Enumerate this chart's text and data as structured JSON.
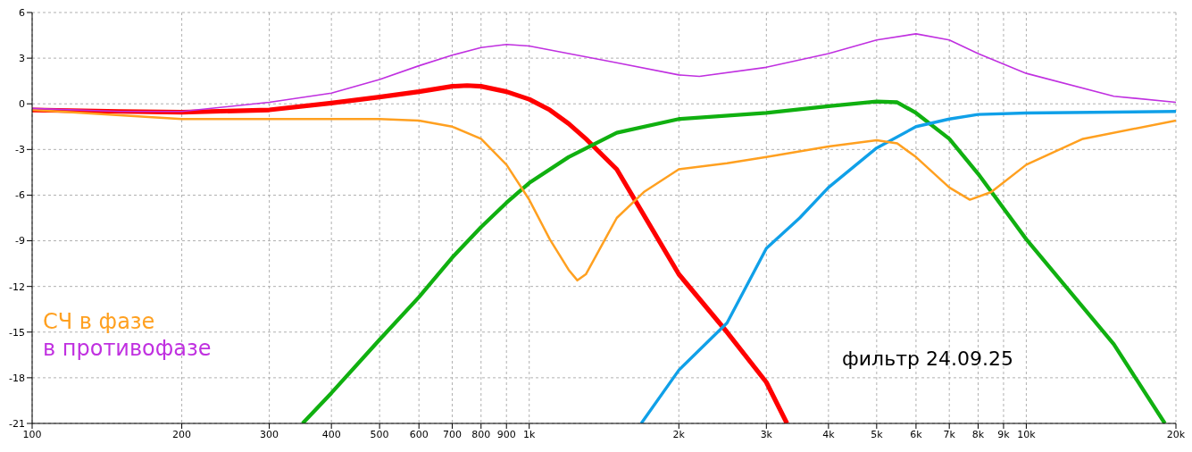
{
  "chart_data": {
    "type": "line",
    "log": "x",
    "grid": true,
    "legend": "bottom left",
    "line_style": "solid",
    "marker": "none",
    "xlim": [
      100,
      20000
    ],
    "xticks": [
      100,
      200,
      300,
      400,
      500,
      600,
      700,
      800,
      900,
      {
        "value": 1000,
        "label": "1k"
      },
      {
        "value": 2000,
        "label": "2k"
      },
      {
        "value": 3000,
        "label": "3k"
      },
      {
        "value": 4000,
        "label": "4k"
      },
      {
        "value": 5000,
        "label": "5k"
      },
      {
        "value": 6000,
        "label": "6k"
      },
      {
        "value": 7000,
        "label": "7k"
      },
      {
        "value": 8000,
        "label": "8k"
      },
      {
        "value": 9000,
        "label": "9k"
      },
      {
        "value": 10000,
        "label": "10k"
      },
      {
        "value": 20000,
        "label": "20k"
      }
    ],
    "ylim": [
      -21,
      6
    ],
    "yticks": [
      -21,
      -18,
      -15,
      -12,
      -9,
      -6,
      -3,
      0,
      3,
      6
    ],
    "series": [
      {
        "color": "#ff0000",
        "x": [
          100,
          150,
          200,
          300,
          400,
          500,
          600,
          700,
          750,
          800,
          900,
          1000,
          1100,
          1200,
          1300,
          1500,
          2000,
          2500,
          3000,
          3300
        ],
        "values": [
          -0.4,
          -0.5,
          -0.55,
          -0.4,
          0.05,
          0.45,
          0.8,
          1.15,
          1.2,
          1.15,
          0.8,
          0.3,
          -0.4,
          -1.3,
          -2.3,
          -4.3,
          -11.2,
          -15,
          -18.3,
          -21
        ]
      },
      {
        "color": "#10b010",
        "x": [
          350,
          400,
          500,
          600,
          700,
          800,
          900,
          1000,
          1200,
          1500,
          2000,
          3000,
          4000,
          5000,
          5500,
          6000,
          7000,
          8000,
          10000,
          15000,
          19000
        ],
        "values": [
          -21,
          -19,
          -15.5,
          -12.7,
          -10.1,
          -8.1,
          -6.5,
          -5.2,
          -3.5,
          -1.9,
          -1,
          -0.6,
          -0.15,
          0.15,
          0.1,
          -0.6,
          -2.3,
          -4.6,
          -8.9,
          -15.8,
          -21
        ]
      },
      {
        "color": "#10a0e8",
        "x": [
          1680,
          2000,
          2500,
          3000,
          3500,
          4000,
          5000,
          6000,
          7000,
          8000,
          10000,
          20000
        ],
        "values": [
          -21,
          -17.5,
          -14.4,
          -9.5,
          -7.5,
          -5.5,
          -2.9,
          -1.5,
          -1,
          -0.7,
          -0.6,
          -0.5
        ]
      },
      {
        "name": "СЧ в фазе",
        "color": "#ffa020",
        "x": [
          100,
          200,
          300,
          500,
          600,
          700,
          800,
          900,
          1000,
          1100,
          1200,
          1250,
          1300,
          1500,
          1700,
          2000,
          2500,
          3000,
          4000,
          5000,
          5500,
          6000,
          7000,
          7700,
          8500,
          10000,
          13000,
          20000
        ],
        "values": [
          -0.4,
          -1,
          -1,
          -1,
          -1.1,
          -1.5,
          -2.3,
          -4,
          -6.3,
          -8.9,
          -10.9,
          -11.6,
          -11.2,
          -7.5,
          -5.8,
          -4.3,
          -3.9,
          -3.5,
          -2.8,
          -2.4,
          -2.6,
          -3.5,
          -5.5,
          -6.3,
          -5.8,
          -4,
          -2.3,
          -1.1
        ]
      },
      {
        "name": "в противофазе",
        "color": "#c030e0",
        "x": [
          100,
          150,
          200,
          300,
          400,
          500,
          600,
          700,
          800,
          900,
          1000,
          1500,
          2000,
          2200,
          3000,
          4000,
          5000,
          6000,
          7000,
          8000,
          10000,
          15000,
          20000
        ],
        "values": [
          -0.3,
          -0.5,
          -0.5,
          0.1,
          0.7,
          1.6,
          2.5,
          3.2,
          3.7,
          3.9,
          3.8,
          2.7,
          1.9,
          1.8,
          2.4,
          3.3,
          4.2,
          4.6,
          4.2,
          3.3,
          2,
          0.5,
          0.1
        ]
      }
    ],
    "annotations": [
      "фильтр 24.09.25"
    ]
  }
}
